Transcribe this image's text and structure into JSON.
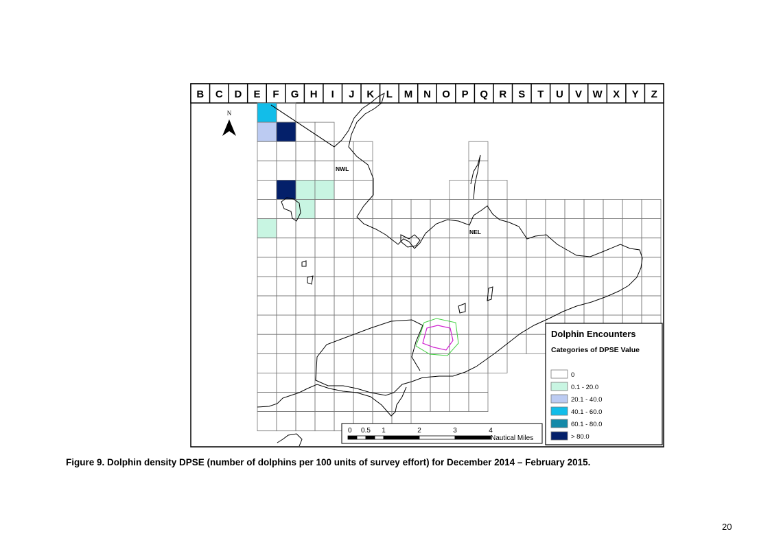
{
  "columns": [
    "B",
    "C",
    "D",
    "E",
    "F",
    "G",
    "H",
    "I",
    "J",
    "K",
    "L",
    "M",
    "N",
    "O",
    "P",
    "Q",
    "R",
    "S",
    "T",
    "U",
    "V",
    "W",
    "X",
    "Y",
    "Z"
  ],
  "north_label": "N",
  "place_labels": {
    "nwl": "NWL",
    "nel": "NEL"
  },
  "legend": {
    "title": "Dolphin Encounters",
    "subtitle": "Categories of DPSE Value",
    "items": [
      {
        "label": "0",
        "color": "#ffffff"
      },
      {
        "label": "0.1 - 20.0",
        "color": "#c8f5e2"
      },
      {
        "label": "20.1 - 40.0",
        "color": "#bccbf2"
      },
      {
        "label": "40.1 - 60.0",
        "color": "#12bde9"
      },
      {
        "label": "60.1 - 80.0",
        "color": "#1489a8"
      },
      {
        "label": "> 80.0",
        "color": "#04206a"
      }
    ]
  },
  "scale_bar": {
    "ticks": [
      "0",
      "0.5",
      "1",
      "2",
      "3",
      "4"
    ],
    "unit": "Nautical Miles"
  },
  "grid_cells": {
    "F": [
      1,
      2,
      3,
      4,
      5,
      6,
      7,
      8,
      9,
      10,
      11,
      12,
      13,
      14,
      15,
      16,
      17
    ],
    "G": [
      1,
      2,
      3,
      4,
      5,
      6,
      7,
      8,
      9,
      10,
      11,
      12,
      13,
      14,
      15,
      16,
      17
    ],
    "H": [
      2,
      3,
      4,
      5,
      6,
      7,
      8,
      9,
      10,
      11,
      12,
      13,
      14,
      15,
      16,
      17
    ],
    "I": [
      2,
      3,
      4,
      5,
      6,
      7,
      8,
      9,
      10,
      11,
      12,
      13,
      14,
      15,
      16,
      17
    ],
    "J": [
      3,
      4,
      5,
      6,
      7,
      8,
      9,
      10,
      11,
      12,
      13,
      14,
      15,
      16,
      17
    ],
    "K": [
      3,
      4,
      5,
      6,
      7,
      8,
      9,
      10,
      11,
      12,
      13,
      14,
      15,
      16,
      17
    ],
    "L": [
      6,
      7,
      8,
      9,
      10,
      11,
      12,
      13,
      14,
      15,
      16,
      17
    ],
    "M": [
      6,
      7,
      8,
      9,
      10,
      11,
      12,
      13,
      14,
      15,
      16,
      17
    ],
    "N": [
      6,
      7,
      8,
      9,
      10,
      11,
      12,
      13,
      14,
      15,
      16
    ],
    "O": [
      6,
      7,
      8,
      9,
      10,
      11,
      12,
      13,
      14,
      15,
      16
    ],
    "P": [
      5,
      6,
      7,
      8,
      9,
      10,
      11,
      12,
      13,
      14,
      15,
      16
    ],
    "Q": [
      3,
      4,
      5,
      6,
      7,
      8,
      9,
      10,
      11,
      12,
      13,
      14,
      15,
      16
    ],
    "R": [
      5,
      6,
      7,
      8,
      9,
      10,
      11,
      12,
      13,
      14
    ],
    "S": [
      6,
      7,
      8,
      9,
      10,
      11,
      12,
      13
    ],
    "T": [
      6,
      7,
      8,
      9,
      10,
      11,
      12,
      13
    ],
    "U": [
      6,
      7,
      8,
      9,
      10,
      11,
      12,
      13
    ],
    "V": [
      6,
      7,
      8,
      9,
      10,
      11,
      12,
      13
    ],
    "W": [
      6,
      7,
      8,
      9,
      10,
      11,
      12
    ],
    "X": [
      6,
      7,
      8,
      9,
      10,
      11,
      12
    ],
    "Y": [
      6,
      7,
      8,
      9,
      10,
      11,
      12
    ],
    "Z": [
      6,
      7,
      8,
      9,
      10,
      11,
      12
    ]
  },
  "dpse_cells": [
    {
      "col": "F",
      "row": 1,
      "category": "40.1 - 60.0"
    },
    {
      "col": "F",
      "row": 2,
      "category": "20.1 - 40.0"
    },
    {
      "col": "G",
      "row": 2,
      "category": "> 80.0"
    },
    {
      "col": "G",
      "row": 5,
      "category": "> 80.0"
    },
    {
      "col": "H",
      "row": 5,
      "category": "0.1 - 20.0"
    },
    {
      "col": "I",
      "row": 5,
      "category": "0.1 - 20.0"
    },
    {
      "col": "H",
      "row": 6,
      "category": "0.1 - 20.0"
    },
    {
      "col": "F",
      "row": 7,
      "category": "0.1 - 20.0"
    }
  ],
  "caption": "Figure 9. Dolphin density DPSE (number of dolphins per 100 units of survey effort) for December 2014 – February 2015.",
  "page_number": "20"
}
